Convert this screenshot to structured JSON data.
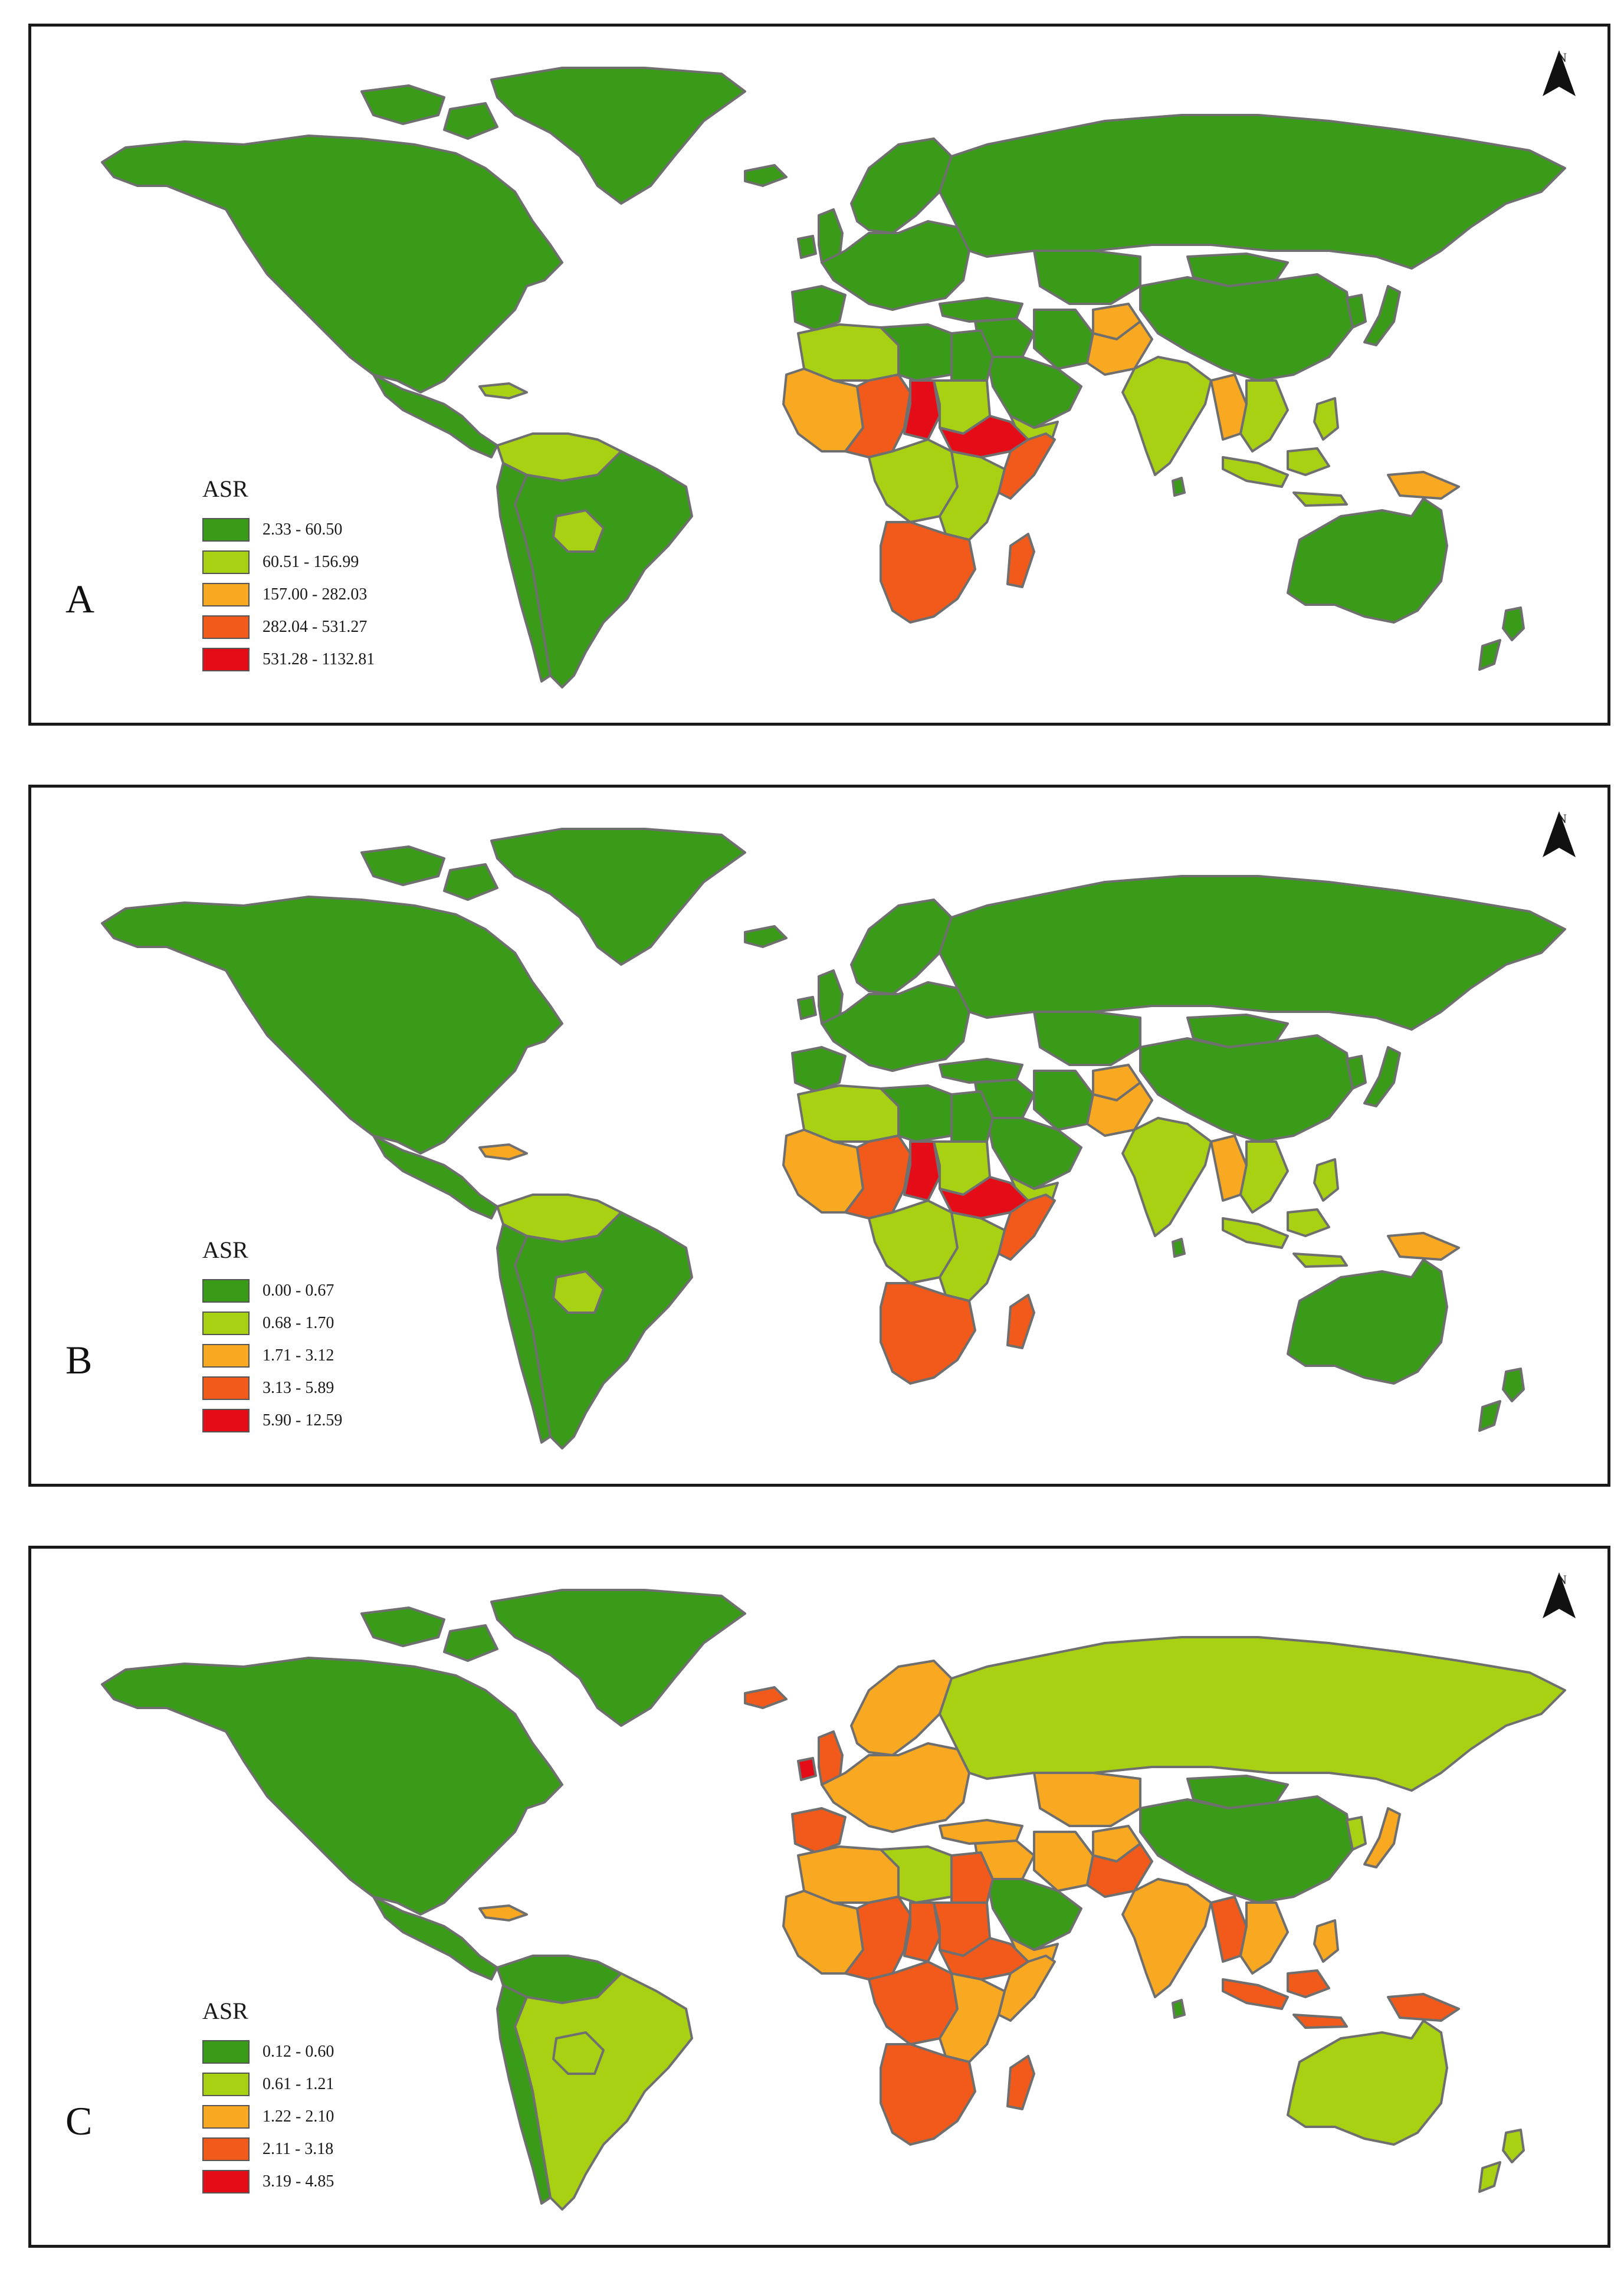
{
  "colors": {
    "c1": "#3a9b19",
    "c2": "#a8d113",
    "c3": "#f9a822",
    "c4": "#f15a1a",
    "c5": "#e40d17"
  },
  "north_arrow_text": "N",
  "panels": [
    {
      "label": "A",
      "legend_title": "ASR",
      "legend": [
        "2.33 - 60.50",
        "60.51 - 156.99",
        "157.00 - 282.03",
        "282.04 - 531.27",
        "531.28 - 1132.81"
      ],
      "fills": {
        "namerica": "c1",
        "greenland": "c1",
        "canada_isl": "c1",
        "camerica": "c1",
        "carib": "c2",
        "nsamerica": "c2",
        "samerica": "c1",
        "bolivia": "c2",
        "andes": "c1",
        "europe": "c1",
        "uk": "c1",
        "ireland": "c1",
        "iceland": "c1",
        "scandinavia": "c1",
        "iberia": "c1",
        "russia": "c1",
        "china": "c1",
        "mongolia": "c1",
        "japan": "c1",
        "korea": "c1",
        "turkey": "c1",
        "centasia": "c1",
        "iran": "c1",
        "middleeast": "c1",
        "arabia": "c1",
        "yemen": "c2",
        "afghan": "c3",
        "pakistan": "c3",
        "india": "c2",
        "srilanka": "c1",
        "myanmar": "c3",
        "seasia": "c2",
        "philippines": "c2",
        "indonesia": "c2",
        "png": "c3",
        "australia": "c1",
        "nz": "c1",
        "nafrica_w": "c2",
        "nafrica_e": "c1",
        "egypt": "c1",
        "wafrica": "c3",
        "sahel": "c4",
        "chad": "c5",
        "sudan": "c2",
        "hornafr": "c5",
        "somalia": "c4",
        "cafrica": "c2",
        "eafrica": "c2",
        "safrica": "c4",
        "madagascar": "c4"
      }
    },
    {
      "label": "B",
      "legend_title": "ASR",
      "legend": [
        "0.00 - 0.67",
        "0.68 - 1.70",
        "1.71 - 3.12",
        "3.13 - 5.89",
        "5.90 - 12.59"
      ],
      "fills": {
        "namerica": "c1",
        "greenland": "c1",
        "canada_isl": "c1",
        "camerica": "c1",
        "carib": "c3",
        "nsamerica": "c2",
        "samerica": "c1",
        "bolivia": "c2",
        "andes": "c1",
        "europe": "c1",
        "uk": "c1",
        "ireland": "c1",
        "iceland": "c1",
        "scandinavia": "c1",
        "iberia": "c1",
        "russia": "c1",
        "china": "c1",
        "mongolia": "c1",
        "japan": "c1",
        "korea": "c1",
        "turkey": "c1",
        "centasia": "c1",
        "iran": "c1",
        "middleeast": "c1",
        "arabia": "c1",
        "yemen": "c2",
        "afghan": "c3",
        "pakistan": "c3",
        "india": "c2",
        "srilanka": "c1",
        "myanmar": "c3",
        "seasia": "c2",
        "philippines": "c2",
        "indonesia": "c2",
        "png": "c3",
        "australia": "c1",
        "nz": "c1",
        "nafrica_w": "c2",
        "nafrica_e": "c1",
        "egypt": "c1",
        "wafrica": "c3",
        "sahel": "c4",
        "chad": "c5",
        "sudan": "c2",
        "hornafr": "c5",
        "somalia": "c4",
        "cafrica": "c2",
        "eafrica": "c2",
        "safrica": "c4",
        "madagascar": "c4"
      }
    },
    {
      "label": "C",
      "legend_title": "ASR",
      "legend": [
        "0.12 - 0.60",
        "0.61 - 1.21",
        "1.22 - 2.10",
        "2.11 - 3.18",
        "3.19 - 4.85"
      ],
      "fills": {
        "namerica": "c1",
        "greenland": "c1",
        "canada_isl": "c1",
        "camerica": "c1",
        "carib": "c3",
        "nsamerica": "c1",
        "samerica": "c2",
        "bolivia": "c2",
        "andes": "c1",
        "europe": "c3",
        "uk": "c4",
        "ireland": "c5",
        "iceland": "c4",
        "scandinavia": "c3",
        "iberia": "c4",
        "russia": "c2",
        "china": "c1",
        "mongolia": "c1",
        "japan": "c3",
        "korea": "c2",
        "turkey": "c3",
        "centasia": "c3",
        "iran": "c3",
        "middleeast": "c3",
        "arabia": "c1",
        "yemen": "c3",
        "afghan": "c3",
        "pakistan": "c4",
        "india": "c3",
        "srilanka": "c1",
        "myanmar": "c4",
        "seasia": "c3",
        "philippines": "c3",
        "indonesia": "c4",
        "png": "c4",
        "australia": "c2",
        "nz": "c2",
        "nafrica_w": "c3",
        "nafrica_e": "c2",
        "egypt": "c4",
        "wafrica": "c3",
        "sahel": "c4",
        "chad": "c4",
        "sudan": "c4",
        "hornafr": "c4",
        "somalia": "c3",
        "cafrica": "c4",
        "eafrica": "c3",
        "safrica": "c4",
        "madagascar": "c4"
      }
    }
  ]
}
